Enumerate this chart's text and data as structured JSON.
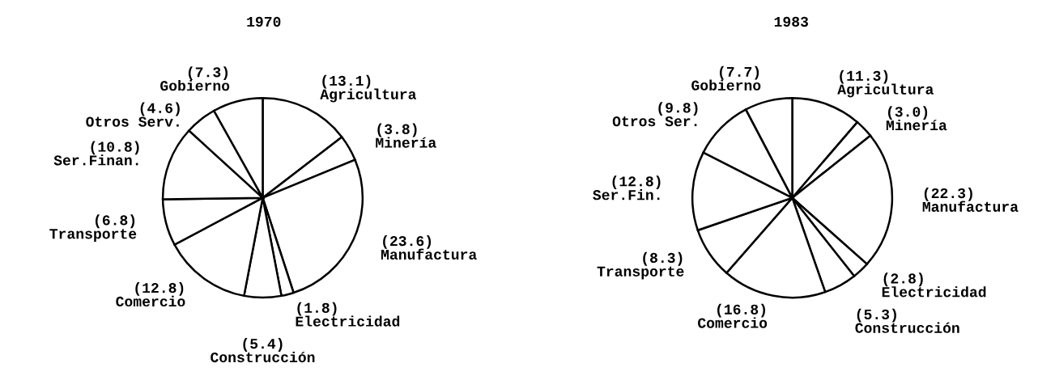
{
  "chart_data": [
    {
      "type": "pie",
      "title": "1970",
      "categories": [
        "Agricultura",
        "Minería",
        "Manufactura",
        "Electricidad",
        "Construcción",
        "Comercio",
        "Transporte",
        "Ser.Finan.",
        "Otros Serv.",
        "Gobierno"
      ],
      "values": [
        13.1,
        3.8,
        23.6,
        1.8,
        5.4,
        12.8,
        6.8,
        10.8,
        4.6,
        7.3
      ],
      "value_labels": [
        "(13.1)",
        "(3.8)",
        "(23.6)",
        "(1.8)",
        "(5.4)",
        "(12.8)",
        "(6.8)",
        "(10.8)",
        "(4.6)",
        "(7.3)"
      ],
      "colors": [
        "#ffffff",
        "#ffffff",
        "#ffffff",
        "#ffffff",
        "#ffffff",
        "#ffffff",
        "#ffffff",
        "#ffffff",
        "#ffffff",
        "#ffffff"
      ]
    },
    {
      "type": "pie",
      "title": "1983",
      "categories": [
        "Agricultura",
        "Minería",
        "Manufactura",
        "Electricidad",
        "Construcción",
        "Comercio",
        "Transporte",
        "Ser.Fin.",
        "Otros Ser.",
        "Gobierno"
      ],
      "values": [
        11.3,
        3.0,
        22.3,
        2.8,
        5.3,
        16.8,
        8.3,
        12.8,
        9.8,
        7.7
      ],
      "value_labels": [
        "(11.3)",
        "(3.0)",
        "(22.3)",
        "(2.8)",
        "(5.3)",
        "(16.8)",
        "(8.3)",
        "(12.8)",
        "(9.8)",
        "(7.7)"
      ],
      "colors": [
        "#ffffff",
        "#ffffff",
        "#ffffff",
        "#ffffff",
        "#ffffff",
        "#ffffff",
        "#ffffff",
        "#ffffff",
        "#ffffff",
        "#ffffff"
      ]
    }
  ]
}
